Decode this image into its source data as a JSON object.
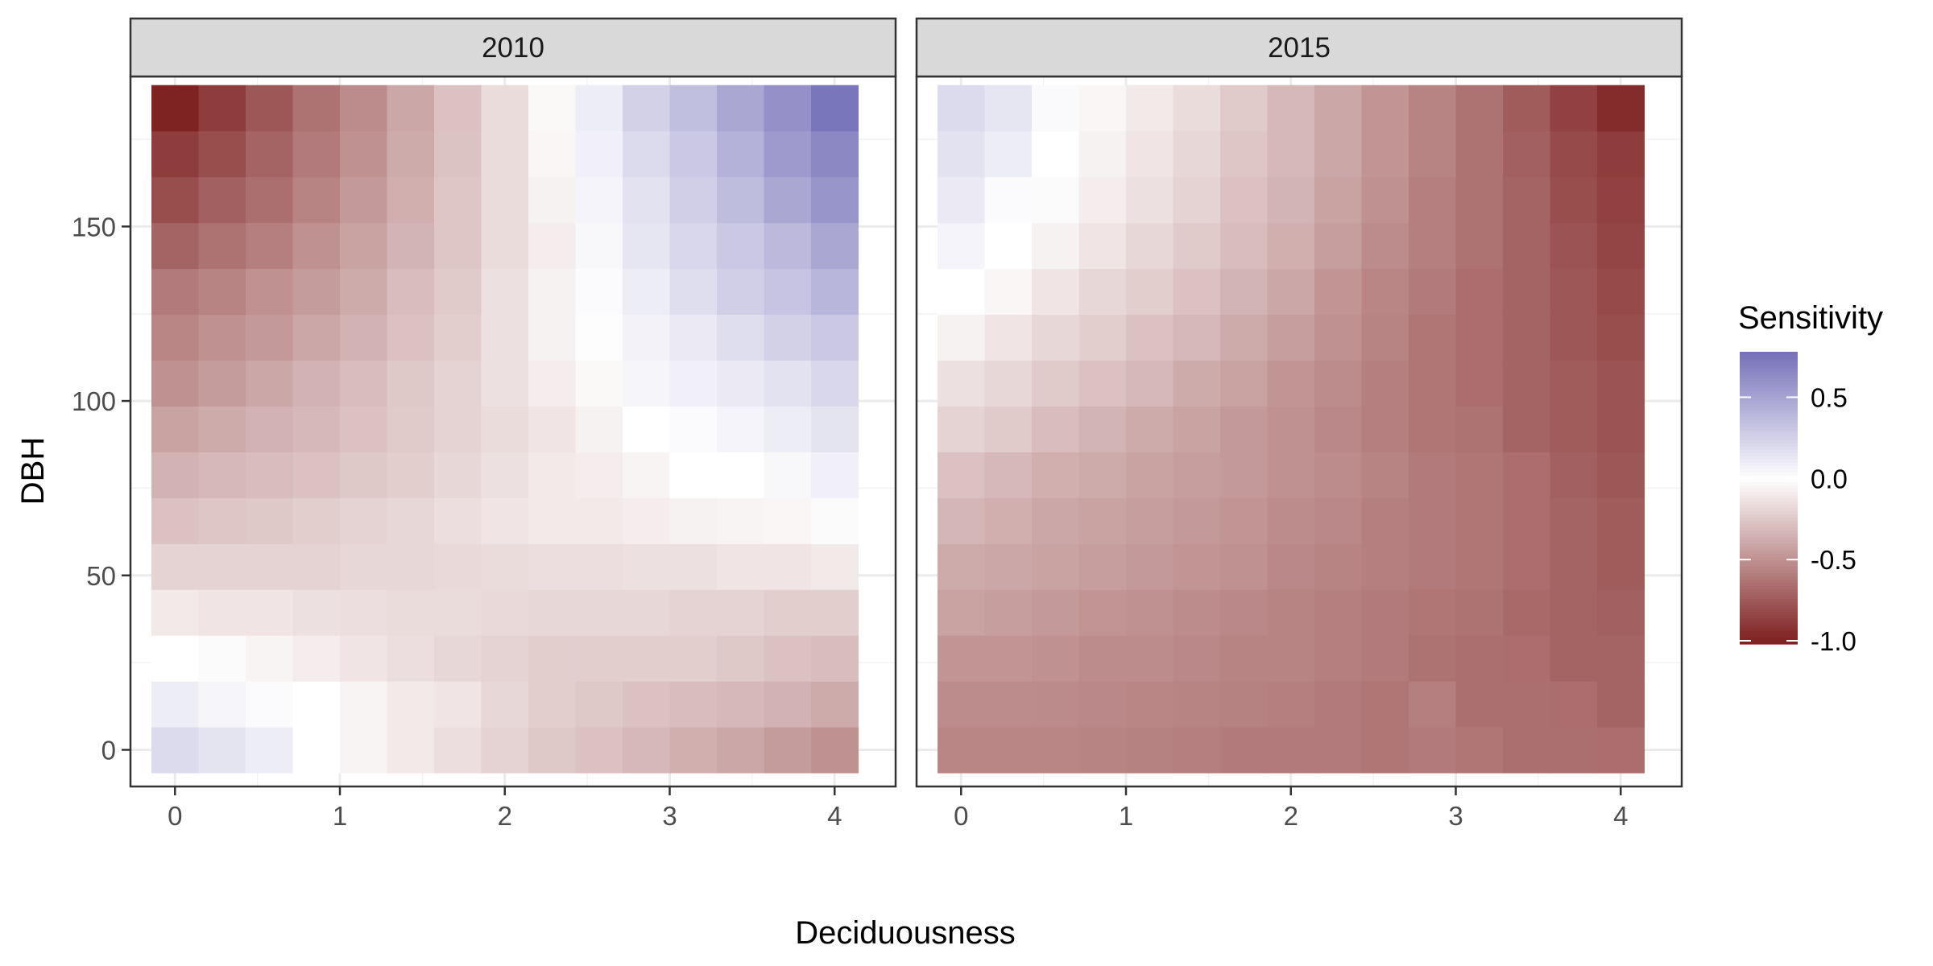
{
  "chart_data": {
    "type": "heatmap",
    "facets": [
      "2010",
      "2015"
    ],
    "xlabel": "Deciduousness",
    "ylabel": "DBH",
    "x_ticks": [
      0,
      1,
      2,
      3,
      4
    ],
    "y_ticks": [
      0,
      50,
      100,
      150
    ],
    "x_tick_labels": [
      "0",
      "1",
      "2",
      "3",
      "4"
    ],
    "y_tick_labels": [
      "0",
      "50",
      "100",
      "150"
    ],
    "xlim": [
      -0.27,
      4.37
    ],
    "ylim": [
      -10.5,
      193
    ],
    "tile_x_start": 0,
    "tile_x_step": 0.2857,
    "tile_x_count": 15,
    "tile_y_start": 0,
    "tile_y_step": 13.14,
    "tile_y_count": 15,
    "legend": {
      "title": "Sensitivity",
      "ticks": [
        0.5,
        0.0,
        -0.5,
        -1.0
      ],
      "tick_labels": [
        "0.5",
        "0.0",
        "-0.5",
        "-1.0"
      ],
      "range": [
        -1.02,
        0.78
      ],
      "position": "right"
    },
    "colors": {
      "low": "#7f2222",
      "mid": "#ffffff",
      "high": "#7570b8"
    },
    "panels": {
      "2010": [
        [
          0.2,
          0.15,
          0.1,
          0.0,
          -0.05,
          -0.1,
          -0.15,
          -0.2,
          -0.25,
          -0.28,
          -0.32,
          -0.36,
          -0.4,
          -0.45,
          -0.5
        ],
        [
          0.1,
          0.05,
          0.02,
          0.0,
          -0.05,
          -0.1,
          -0.12,
          -0.18,
          -0.22,
          -0.25,
          -0.28,
          -0.3,
          -0.32,
          -0.35,
          -0.38
        ],
        [
          0.0,
          -0.02,
          -0.05,
          -0.08,
          -0.12,
          -0.15,
          -0.18,
          -0.2,
          -0.22,
          -0.22,
          -0.22,
          -0.22,
          -0.25,
          -0.28,
          -0.3
        ],
        [
          -0.1,
          -0.12,
          -0.12,
          -0.14,
          -0.15,
          -0.16,
          -0.16,
          -0.17,
          -0.18,
          -0.18,
          -0.18,
          -0.2,
          -0.2,
          -0.22,
          -0.22
        ],
        [
          -0.2,
          -0.2,
          -0.2,
          -0.2,
          -0.18,
          -0.18,
          -0.17,
          -0.16,
          -0.15,
          -0.15,
          -0.14,
          -0.14,
          -0.12,
          -0.12,
          -0.1
        ],
        [
          -0.28,
          -0.26,
          -0.25,
          -0.22,
          -0.2,
          -0.18,
          -0.15,
          -0.12,
          -0.1,
          -0.1,
          -0.08,
          -0.06,
          -0.05,
          -0.04,
          -0.02
        ],
        [
          -0.35,
          -0.32,
          -0.3,
          -0.28,
          -0.25,
          -0.22,
          -0.18,
          -0.14,
          -0.1,
          -0.08,
          -0.05,
          0.0,
          0.0,
          0.04,
          0.08
        ],
        [
          -0.42,
          -0.38,
          -0.35,
          -0.32,
          -0.28,
          -0.24,
          -0.2,
          -0.16,
          -0.12,
          -0.06,
          0.0,
          0.02,
          0.06,
          0.1,
          0.15
        ],
        [
          -0.5,
          -0.45,
          -0.4,
          -0.35,
          -0.3,
          -0.25,
          -0.2,
          -0.14,
          -0.08,
          -0.03,
          0.05,
          0.08,
          0.12,
          0.16,
          0.22
        ],
        [
          -0.55,
          -0.5,
          -0.46,
          -0.4,
          -0.35,
          -0.28,
          -0.22,
          -0.14,
          -0.06,
          -0.01,
          0.07,
          0.12,
          0.18,
          0.25,
          0.3
        ],
        [
          -0.6,
          -0.56,
          -0.5,
          -0.45,
          -0.38,
          -0.3,
          -0.24,
          -0.14,
          -0.06,
          0.02,
          0.1,
          0.18,
          0.26,
          0.32,
          0.4
        ],
        [
          -0.7,
          -0.64,
          -0.58,
          -0.5,
          -0.42,
          -0.34,
          -0.26,
          -0.16,
          -0.08,
          0.04,
          0.14,
          0.22,
          0.3,
          0.38,
          0.48
        ],
        [
          -0.8,
          -0.72,
          -0.65,
          -0.56,
          -0.46,
          -0.36,
          -0.26,
          -0.16,
          -0.06,
          0.06,
          0.16,
          0.26,
          0.36,
          0.48,
          0.58
        ],
        [
          -0.88,
          -0.8,
          -0.7,
          -0.6,
          -0.5,
          -0.38,
          -0.27,
          -0.16,
          -0.04,
          0.08,
          0.2,
          0.3,
          0.42,
          0.55,
          0.65
        ],
        [
          -1.0,
          -0.88,
          -0.76,
          -0.64,
          -0.52,
          -0.4,
          -0.28,
          -0.16,
          -0.03,
          0.1,
          0.25,
          0.35,
          0.48,
          0.6,
          0.75
        ]
      ],
      "2015": [
        [
          -0.55,
          -0.55,
          -0.55,
          -0.56,
          -0.57,
          -0.58,
          -0.6,
          -0.6,
          -0.6,
          -0.62,
          -0.6,
          -0.62,
          -0.65,
          -0.65,
          -0.66
        ],
        [
          -0.52,
          -0.52,
          -0.53,
          -0.54,
          -0.55,
          -0.56,
          -0.57,
          -0.58,
          -0.6,
          -0.62,
          -0.58,
          -0.65,
          -0.65,
          -0.66,
          -0.7
        ],
        [
          -0.48,
          -0.48,
          -0.5,
          -0.52,
          -0.52,
          -0.54,
          -0.56,
          -0.56,
          -0.58,
          -0.6,
          -0.64,
          -0.65,
          -0.66,
          -0.7,
          -0.7
        ],
        [
          -0.42,
          -0.44,
          -0.46,
          -0.48,
          -0.5,
          -0.52,
          -0.54,
          -0.56,
          -0.58,
          -0.6,
          -0.62,
          -0.64,
          -0.68,
          -0.7,
          -0.72
        ],
        [
          -0.38,
          -0.4,
          -0.42,
          -0.44,
          -0.46,
          -0.48,
          -0.5,
          -0.54,
          -0.56,
          -0.58,
          -0.6,
          -0.62,
          -0.66,
          -0.7,
          -0.74
        ],
        [
          -0.33,
          -0.36,
          -0.4,
          -0.42,
          -0.44,
          -0.46,
          -0.48,
          -0.52,
          -0.54,
          -0.58,
          -0.6,
          -0.62,
          -0.66,
          -0.7,
          -0.74
        ],
        [
          -0.28,
          -0.32,
          -0.36,
          -0.38,
          -0.42,
          -0.44,
          -0.46,
          -0.5,
          -0.52,
          -0.56,
          -0.6,
          -0.62,
          -0.66,
          -0.72,
          -0.76
        ],
        [
          -0.2,
          -0.24,
          -0.3,
          -0.34,
          -0.38,
          -0.42,
          -0.46,
          -0.5,
          -0.54,
          -0.58,
          -0.62,
          -0.64,
          -0.7,
          -0.74,
          -0.78
        ],
        [
          -0.14,
          -0.18,
          -0.24,
          -0.28,
          -0.32,
          -0.38,
          -0.42,
          -0.48,
          -0.52,
          -0.58,
          -0.62,
          -0.66,
          -0.7,
          -0.74,
          -0.78
        ],
        [
          -0.06,
          -0.12,
          -0.18,
          -0.22,
          -0.28,
          -0.32,
          -0.38,
          -0.44,
          -0.5,
          -0.56,
          -0.62,
          -0.66,
          -0.7,
          -0.76,
          -0.8
        ],
        [
          0.0,
          -0.04,
          -0.12,
          -0.18,
          -0.22,
          -0.28,
          -0.34,
          -0.4,
          -0.48,
          -0.55,
          -0.6,
          -0.66,
          -0.7,
          -0.76,
          -0.82
        ],
        [
          0.06,
          0.0,
          -0.06,
          -0.12,
          -0.18,
          -0.24,
          -0.3,
          -0.36,
          -0.44,
          -0.52,
          -0.58,
          -0.64,
          -0.7,
          -0.78,
          -0.84
        ],
        [
          0.12,
          0.02,
          -0.02,
          -0.08,
          -0.14,
          -0.2,
          -0.28,
          -0.34,
          -0.42,
          -0.5,
          -0.58,
          -0.64,
          -0.7,
          -0.8,
          -0.86
        ],
        [
          0.16,
          0.1,
          0.0,
          -0.06,
          -0.12,
          -0.18,
          -0.26,
          -0.32,
          -0.4,
          -0.48,
          -0.56,
          -0.64,
          -0.72,
          -0.82,
          -0.88
        ],
        [
          0.2,
          0.14,
          0.03,
          -0.04,
          -0.1,
          -0.16,
          -0.24,
          -0.32,
          -0.4,
          -0.48,
          -0.56,
          -0.64,
          -0.74,
          -0.86,
          -0.96
        ]
      ]
    }
  }
}
